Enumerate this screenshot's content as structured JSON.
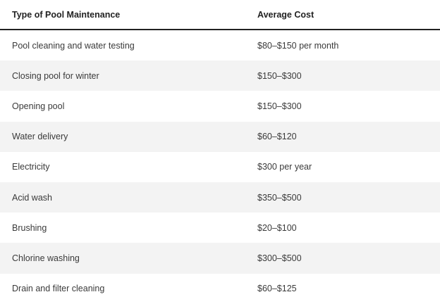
{
  "table": {
    "headers": {
      "type": "Type of Pool Maintenance",
      "cost": "Average Cost"
    },
    "rows": [
      {
        "type": "Pool cleaning and water testing",
        "cost": "$80–$150 per month"
      },
      {
        "type": "Closing pool for winter",
        "cost": "$150–$300"
      },
      {
        "type": "Opening pool",
        "cost": "$150–$300"
      },
      {
        "type": "Water delivery",
        "cost": "$60–$120"
      },
      {
        "type": "Electricity",
        "cost": "$300 per year"
      },
      {
        "type": "Acid wash",
        "cost": "$350–$500"
      },
      {
        "type": "Brushing",
        "cost": "$20–$100"
      },
      {
        "type": "Chlorine washing",
        "cost": "$300–$500"
      },
      {
        "type": "Drain and filter cleaning",
        "cost": "$60–$125"
      }
    ],
    "colors": {
      "stripe": "#f3f3f3",
      "header_rule": "#222222"
    }
  }
}
